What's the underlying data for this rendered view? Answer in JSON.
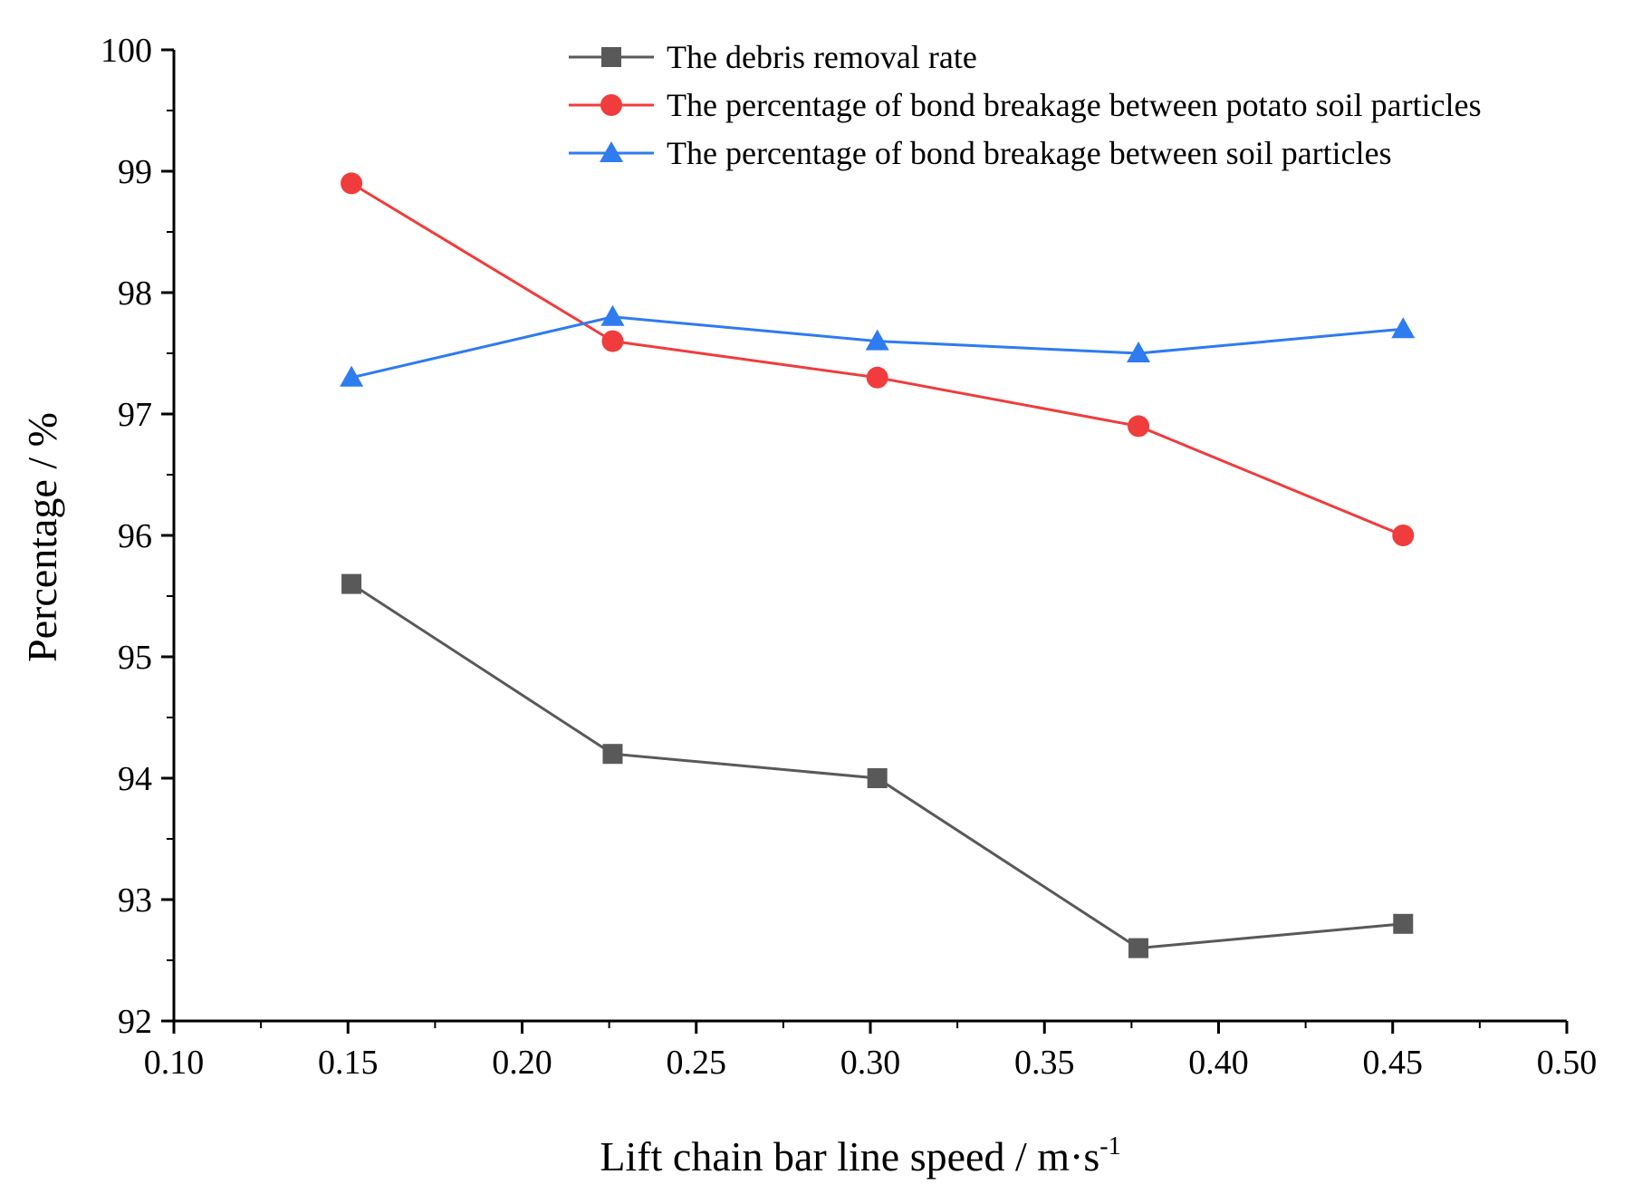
{
  "chart_data": {
    "type": "line",
    "title": "",
    "xlabel": "Lift chain bar line speed / m·s",
    "xlabel_superscript": "-1",
    "ylabel": "Percentage / %",
    "xlim": [
      0.1,
      0.5
    ],
    "ylim": [
      92,
      100
    ],
    "x_ticks": [
      "0.10",
      "0.15",
      "0.20",
      "0.25",
      "0.30",
      "0.35",
      "0.40",
      "0.45",
      "0.50"
    ],
    "y_ticks": [
      "92",
      "93",
      "94",
      "95",
      "96",
      "97",
      "98",
      "99",
      "100"
    ],
    "grid": false,
    "legend_position": "top-right",
    "x": [
      0.151,
      0.226,
      0.302,
      0.377,
      0.453
    ],
    "series": [
      {
        "name": "The debris removal rate",
        "values": [
          95.6,
          94.2,
          94.0,
          92.6,
          92.8
        ],
        "color": "#595959",
        "marker": "square"
      },
      {
        "name": "The percentage of bond breakage between potato soil particles",
        "values": [
          98.9,
          97.6,
          97.3,
          96.9,
          96.0
        ],
        "color": "#f03c3c",
        "marker": "circle"
      },
      {
        "name": "The percentage of bond breakage between soil particles",
        "values": [
          97.3,
          97.8,
          97.6,
          97.5,
          97.7
        ],
        "color": "#2f7bf0",
        "marker": "triangle"
      }
    ]
  }
}
